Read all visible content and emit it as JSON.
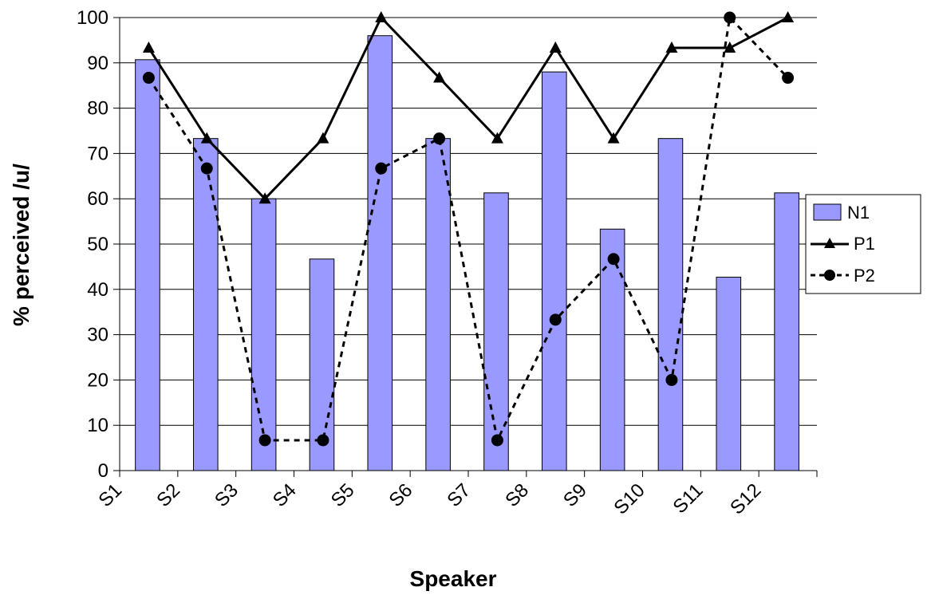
{
  "chart_data": {
    "type": "bar",
    "categories": [
      "S1",
      "S2",
      "S3",
      "S4",
      "S5",
      "S6",
      "S7",
      "S8",
      "S9",
      "S10",
      "S11",
      "S12"
    ],
    "series": [
      {
        "name": "N1",
        "type": "bar",
        "color": "#9999ff",
        "values": [
          90.7,
          73.3,
          60.0,
          46.7,
          96.0,
          73.3,
          61.3,
          88.0,
          53.3,
          73.3,
          42.7,
          61.3
        ]
      },
      {
        "name": "P1",
        "type": "line",
        "style": "solid",
        "marker": "triangle",
        "color": "#000000",
        "values": [
          93.3,
          73.3,
          60.0,
          73.3,
          100,
          86.7,
          73.3,
          93.3,
          73.3,
          93.3,
          93.3,
          100
        ]
      },
      {
        "name": "P2",
        "type": "line",
        "style": "dashed",
        "marker": "circle",
        "color": "#000000",
        "values": [
          86.7,
          66.7,
          6.7,
          6.7,
          66.7,
          73.3,
          6.7,
          33.3,
          46.7,
          20.0,
          100,
          86.7
        ]
      }
    ],
    "xlabel": "Speaker",
    "ylabel": "% perceived /u/",
    "ylim": [
      0,
      100
    ],
    "yticks": [
      0,
      10,
      20,
      30,
      40,
      50,
      60,
      70,
      80,
      90,
      100
    ],
    "grid": true,
    "legend": "right"
  }
}
